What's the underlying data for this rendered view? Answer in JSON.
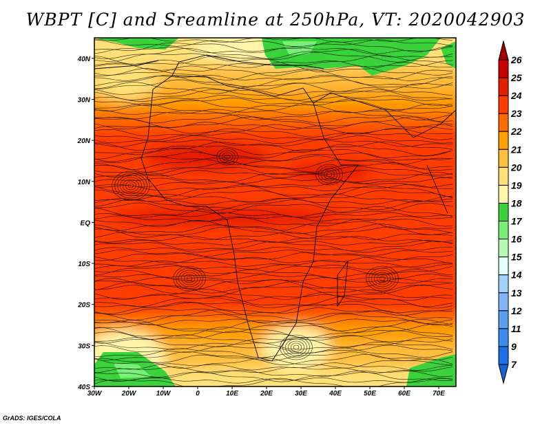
{
  "title": "WBPT [C] and Sreamline at 250hPa, VT: 2020042903",
  "footer": "GrADS: IGES/COLA",
  "map": {
    "lon_range": [
      -30,
      75
    ],
    "lat_range": [
      -40,
      45
    ],
    "x_ticks": [
      "30W",
      "20W",
      "10W",
      "0",
      "10E",
      "20E",
      "30E",
      "40E",
      "50E",
      "60E",
      "70E"
    ],
    "x_tick_values": [
      -30,
      -20,
      -10,
      0,
      10,
      20,
      30,
      40,
      50,
      60,
      70
    ],
    "y_ticks": [
      "40N",
      "30N",
      "20N",
      "10N",
      "EQ",
      "10S",
      "20S",
      "30S",
      "40S"
    ],
    "y_tick_values": [
      40,
      30,
      20,
      10,
      0,
      -10,
      -20,
      -30,
      -40
    ]
  },
  "colorbar": {
    "labels": [
      "26",
      "25",
      "24",
      "23",
      "22",
      "21",
      "20",
      "19",
      "18",
      "17",
      "16",
      "15",
      "14",
      "13",
      "12",
      "11",
      "9",
      "7"
    ],
    "colors": [
      "#a00000",
      "#c80000",
      "#e61e00",
      "#ff3c00",
      "#ff6a00",
      "#ffa000",
      "#ffbe3c",
      "#ffe178",
      "#fff5aa",
      "#3cd23c",
      "#78f078",
      "#b4fab4",
      "#e1ffff",
      "#a0d2fa",
      "#82b4fa",
      "#5aa0f0",
      "#3c8cf0",
      "#1e6ee6",
      "#1464d2"
    ],
    "top_arrow_color": "#a00000",
    "bottom_arrow_color": "#1464d2"
  }
}
